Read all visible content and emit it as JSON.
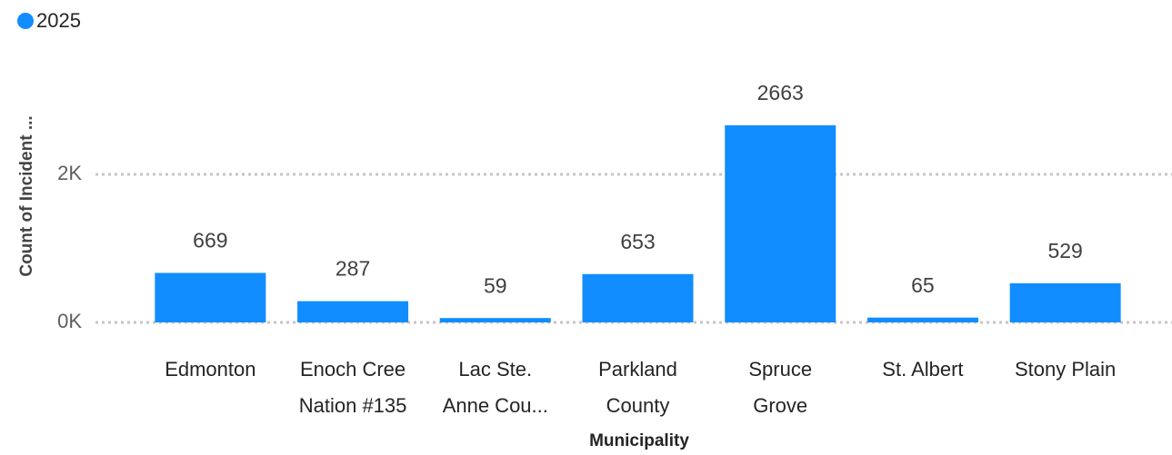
{
  "chart_data": {
    "type": "bar",
    "legend": "2025",
    "x_label": "Municipality",
    "y_label": "Count of Incident ...",
    "categories": [
      "Edmonton",
      "Enoch Cree Nation #135",
      "Lac Ste. Anne Cou...",
      "Parkland County",
      "Spruce Grove",
      "St. Albert",
      "Stony Plain"
    ],
    "values": [
      669,
      287,
      59,
      653,
      2663,
      65,
      529
    ],
    "color": "#118dff",
    "ylim": [
      0,
      3000
    ],
    "yticks": [
      {
        "value": 0,
        "label": "0K"
      },
      {
        "value": 2000,
        "label": "2K"
      }
    ],
    "grid": true
  }
}
